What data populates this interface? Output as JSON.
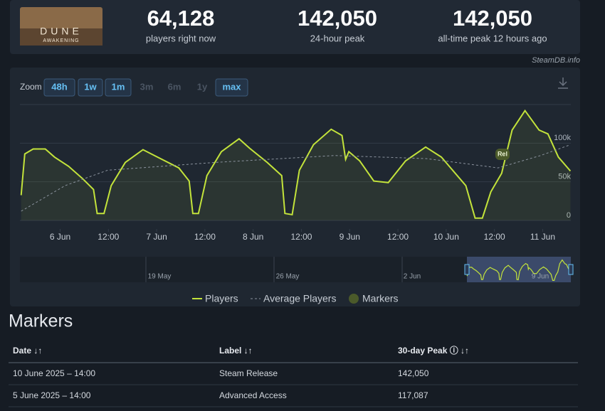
{
  "game": {
    "logo_title": "DUNE",
    "logo_subtitle": "AWAKENING"
  },
  "stats": [
    {
      "value": "64,128",
      "caption": "players right now"
    },
    {
      "value": "142,050",
      "caption": "24-hour peak"
    },
    {
      "value": "142,050",
      "caption": "all-time peak 12 hours ago"
    }
  ],
  "source": "SteamDB.info",
  "zoom": {
    "label": "Zoom",
    "buttons": [
      {
        "label": "48h",
        "enabled": true
      },
      {
        "label": "1w",
        "enabled": true
      },
      {
        "label": "1m",
        "enabled": true
      },
      {
        "label": "3m",
        "enabled": false
      },
      {
        "label": "6m",
        "enabled": false
      },
      {
        "label": "1y",
        "enabled": false
      },
      {
        "label": "max",
        "enabled": true
      }
    ]
  },
  "chart_data": {
    "type": "line",
    "xlim": [
      14,
      151
    ],
    "xticks": [
      {
        "value": 24,
        "label": "6 Jun"
      },
      {
        "value": 36,
        "label": "12:00"
      },
      {
        "value": 48,
        "label": "7 Jun"
      },
      {
        "value": 60,
        "label": "12:00"
      },
      {
        "value": 72,
        "label": "8 Jun"
      },
      {
        "value": 84,
        "label": "12:00"
      },
      {
        "value": 96,
        "label": "9 Jun"
      },
      {
        "value": 108,
        "label": "12:00"
      },
      {
        "value": 120,
        "label": "10 Jun"
      },
      {
        "value": 132,
        "label": "12:00"
      },
      {
        "value": 144,
        "label": "11 Jun"
      }
    ],
    "ylim": [
      0,
      150000
    ],
    "yticks": [
      {
        "value": 0,
        "label": "0"
      },
      {
        "value": 50000,
        "label": "50k"
      },
      {
        "value": 100000,
        "label": "100k"
      }
    ],
    "series": [
      {
        "name": "Players",
        "color": "#c3e33b",
        "x": [
          14.3,
          15.2,
          17.3,
          20.3,
          22.6,
          26.1,
          29.6,
          32.3,
          33.2,
          34.9,
          36.7,
          40.2,
          44.6,
          48.2,
          53.5,
          56.1,
          57.0,
          58.4,
          60.5,
          64.1,
          68.5,
          71.1,
          75.5,
          79.1,
          79.9,
          81.7,
          83.5,
          87.0,
          91.4,
          94.1,
          95.0,
          95.8,
          98.5,
          102.0,
          105.6,
          109.9,
          114.9,
          118.8,
          124.9,
          127.2,
          129.0,
          131.1,
          133.8,
          136.4,
          139.6,
          143.1,
          145.3,
          147.9,
          150.9
        ],
        "values": [
          32700,
          86000,
          92500,
          92500,
          82000,
          70000,
          54000,
          40000,
          9000,
          9000,
          45000,
          75000,
          91600,
          82000,
          68000,
          51000,
          9000,
          9000,
          58000,
          89000,
          105600,
          93500,
          75000,
          58000,
          9000,
          7500,
          65000,
          98000,
          118000,
          110000,
          79000,
          89000,
          77000,
          51000,
          49000,
          77000,
          95000,
          82000,
          45000,
          3000,
          3000,
          37000,
          61000,
          117000,
          142050,
          117000,
          112000,
          82000,
          64000
        ]
      },
      {
        "name": "Average Players",
        "color": "#8b939e",
        "x": [
          14.3,
          25.2,
          35.8,
          62.3,
          92.3,
          115.2,
          132.9,
          143.5,
          150.9
        ],
        "values": [
          12000,
          45000,
          65000,
          75000,
          84000,
          80000,
          68000,
          84000,
          98000
        ]
      }
    ],
    "markers_legend": "Markers",
    "markers": [
      {
        "x": 134,
        "label": "Rel"
      }
    ]
  },
  "navigator": [
    "19 May",
    "26 May",
    "2 Jun",
    "9 Jun"
  ],
  "markers_table": {
    "title": "Markers",
    "columns": [
      "Date ↓↑",
      "Label ↓↑",
      "30-day Peak ⓘ ↓↑"
    ],
    "rows": [
      [
        "10 June 2025 – 14:00",
        "Steam Release",
        "142,050"
      ],
      [
        "5 June 2025 – 14:00",
        "Advanced Access",
        "117,087"
      ]
    ]
  }
}
